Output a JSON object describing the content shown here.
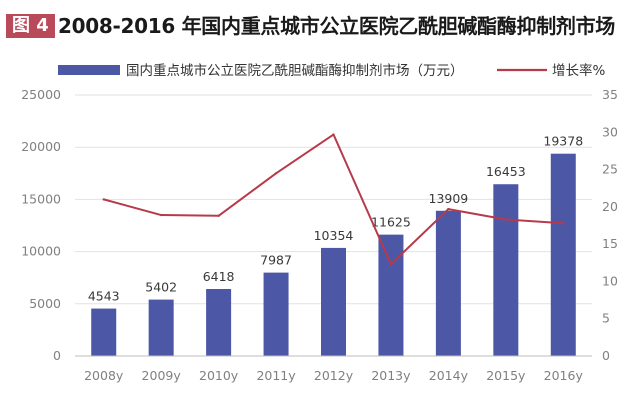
{
  "figure": {
    "tag": "图 4",
    "title": "2008-2016 年国内重点城市公立医院乙酰胆碱酯酶抑制剂市场"
  },
  "colors": {
    "bar": "#4c57a6",
    "line": "#b73a4a",
    "axis_text": "#808080",
    "grid": "#e2e2e2",
    "tag_bg": "#b94a5a"
  },
  "chart_data": {
    "type": "bar",
    "categories": [
      "2008y",
      "2009y",
      "2010y",
      "2011y",
      "2012y",
      "2013y",
      "2014y",
      "2015y",
      "2016y"
    ],
    "series": [
      {
        "name": "国内重点城市公立医院乙酰胆碱酯酶抑制剂市场（万元）",
        "type": "bar",
        "axis": "left",
        "values": [
          4543,
          5402,
          6418,
          7987,
          10354,
          11625,
          13909,
          16453,
          19378
        ],
        "labels": [
          "4543",
          "5402",
          "6418",
          "7987",
          "10354",
          "11625",
          "13909",
          "16453",
          "19378"
        ]
      },
      {
        "name": "增长率%",
        "type": "line",
        "axis": "right",
        "values": [
          21,
          18.9,
          18.8,
          24.5,
          29.7,
          12.3,
          19.7,
          18.3,
          17.8
        ]
      }
    ],
    "y_left": {
      "min": 0,
      "max": 25000,
      "ticks": [
        "0",
        "5000",
        "10000",
        "15000",
        "20000",
        "25000"
      ]
    },
    "y_right": {
      "min": 0,
      "max": 35,
      "ticks": [
        "0",
        "5",
        "10",
        "15",
        "20",
        "25",
        "30",
        "35"
      ]
    },
    "legend_position": "top",
    "grid": true
  }
}
